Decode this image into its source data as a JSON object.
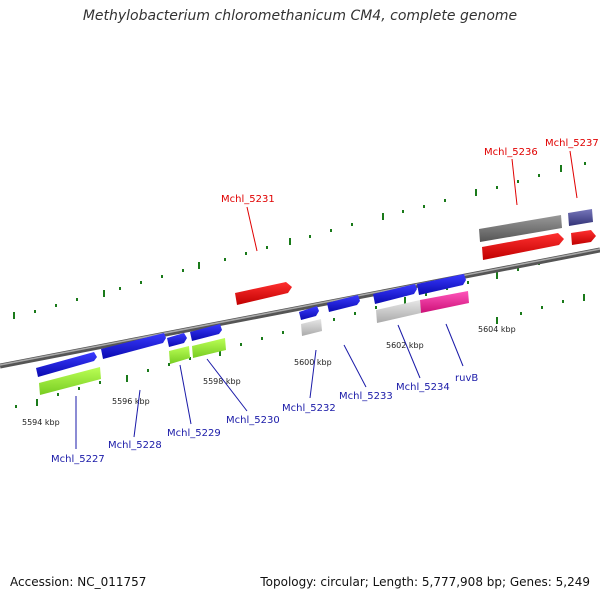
{
  "title": "Methylobacterium chloromethanicum CM4, complete genome",
  "footer": {
    "accession": "Accession: NC_011757",
    "summary": "Topology: circular; Length: 5,777,908 bp; Genes: 5,249"
  },
  "colors": {
    "label_top": "#e00000",
    "label_bottom": "#1a1aa8",
    "blue_gene": "#1a1adc",
    "red_gene": "#ee1111",
    "green_gene": "#99ee33",
    "gray_gene": "#777777",
    "light_gray_gene": "#cccccc",
    "pink_gene": "#ee2299",
    "purple_gene": "#555599",
    "tick": "#1a7a1a",
    "backbone": "#777777"
  },
  "genes": [
    {
      "label": "Mchl_5227",
      "strand": "minus",
      "color": "blue_gene"
    },
    {
      "label": "Mchl_5228",
      "strand": "minus",
      "color": "blue_gene"
    },
    {
      "label": "Mchl_5229",
      "strand": "minus",
      "color": "blue_gene"
    },
    {
      "label": "Mchl_5230",
      "strand": "minus",
      "color": "blue_gene"
    },
    {
      "label": "Mchl_5231",
      "strand": "plus",
      "color": "red_gene"
    },
    {
      "label": "Mchl_5232",
      "strand": "minus",
      "color": "blue_gene"
    },
    {
      "label": "Mchl_5233",
      "strand": "minus",
      "color": "blue_gene"
    },
    {
      "label": "Mchl_5234",
      "strand": "minus",
      "color": "blue_gene"
    },
    {
      "label": "ruvB",
      "strand": "minus",
      "color": "blue_gene"
    },
    {
      "label": "Mchl_5236",
      "strand": "plus",
      "color": "red_gene"
    },
    {
      "label": "Mchl_5237",
      "strand": "plus",
      "color": "red_gene"
    }
  ],
  "kbp_labels": [
    "5594 kbp",
    "5596 kbp",
    "5598 kbp",
    "5600 kbp",
    "5602 kbp",
    "5604 kbp"
  ]
}
